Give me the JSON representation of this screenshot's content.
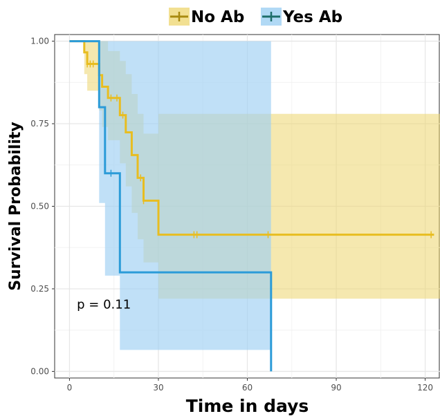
{
  "chart_data": {
    "type": "line",
    "subtype": "kaplan-meier-survival",
    "title": "",
    "xlabel": "Time in days",
    "ylabel": "Survival Probability",
    "xlim": [
      -5,
      125
    ],
    "ylim": [
      -0.02,
      1.02
    ],
    "x_ticks": [
      0,
      30,
      60,
      90,
      120
    ],
    "x_tick_labels": [
      "0",
      "30",
      "60",
      "90",
      "120"
    ],
    "y_ticks": [
      0,
      0.25,
      0.5,
      0.75,
      1.0
    ],
    "y_tick_labels": [
      "0.00",
      "0.25",
      "0.50",
      "0.75",
      "1.00"
    ],
    "grid": true,
    "legend": {
      "placement": "top",
      "show_cross_marker": true
    },
    "annotation": {
      "text": "p = 0.11",
      "x": 2.5,
      "y": 0.19
    },
    "series": [
      {
        "name": "No Ab",
        "color": "#D4A90B",
        "line_color": "#E8BD20",
        "legend_line_color": "#A88A10",
        "band_color": "#EDD66E",
        "band_opacity": 0.55,
        "steps": [
          [
            0,
            1.0
          ],
          [
            5,
            0.966
          ],
          [
            6,
            0.931
          ],
          [
            10,
            0.897
          ],
          [
            11,
            0.862
          ],
          [
            13,
            0.828
          ],
          [
            17,
            0.776
          ],
          [
            19,
            0.724
          ],
          [
            21,
            0.655
          ],
          [
            23,
            0.586
          ],
          [
            25,
            0.517
          ],
          [
            30,
            0.414
          ],
          [
            123,
            0.414
          ]
        ],
        "ci_steps": [
          [
            0,
            1.0,
            1.0
          ],
          [
            5,
            0.9,
            1.0
          ],
          [
            6,
            0.85,
            1.0
          ],
          [
            10,
            0.79,
            1.0
          ],
          [
            11,
            0.74,
            1.0
          ],
          [
            13,
            0.7,
            0.97
          ],
          [
            17,
            0.63,
            0.94
          ],
          [
            19,
            0.56,
            0.9
          ],
          [
            21,
            0.48,
            0.84
          ],
          [
            23,
            0.4,
            0.78
          ],
          [
            25,
            0.33,
            0.72
          ],
          [
            30,
            0.22,
            0.78
          ],
          [
            128,
            0.22,
            0.78
          ]
        ],
        "censor_x": [
          6,
          7,
          8,
          14,
          16,
          18,
          24,
          25,
          42,
          43,
          67,
          122
        ]
      },
      {
        "name": "Yes Ab",
        "color": "#2B9BD8",
        "line_color": "#2B9BD8",
        "legend_line_color": "#1E6E6A",
        "band_color": "#9ED0F2",
        "band_opacity": 0.65,
        "steps": [
          [
            0,
            1.0
          ],
          [
            10,
            0.8
          ],
          [
            12,
            0.6
          ],
          [
            17,
            0.3
          ],
          [
            68,
            0.3
          ],
          [
            68,
            0.0
          ]
        ],
        "ci_steps": [
          [
            0,
            1.0,
            1.0
          ],
          [
            10,
            0.51,
            1.0
          ],
          [
            12,
            0.29,
            1.0
          ],
          [
            17,
            0.065,
            1.0
          ],
          [
            68,
            0.065,
            1.0
          ]
        ],
        "censor_x": [
          14
        ]
      }
    ]
  }
}
